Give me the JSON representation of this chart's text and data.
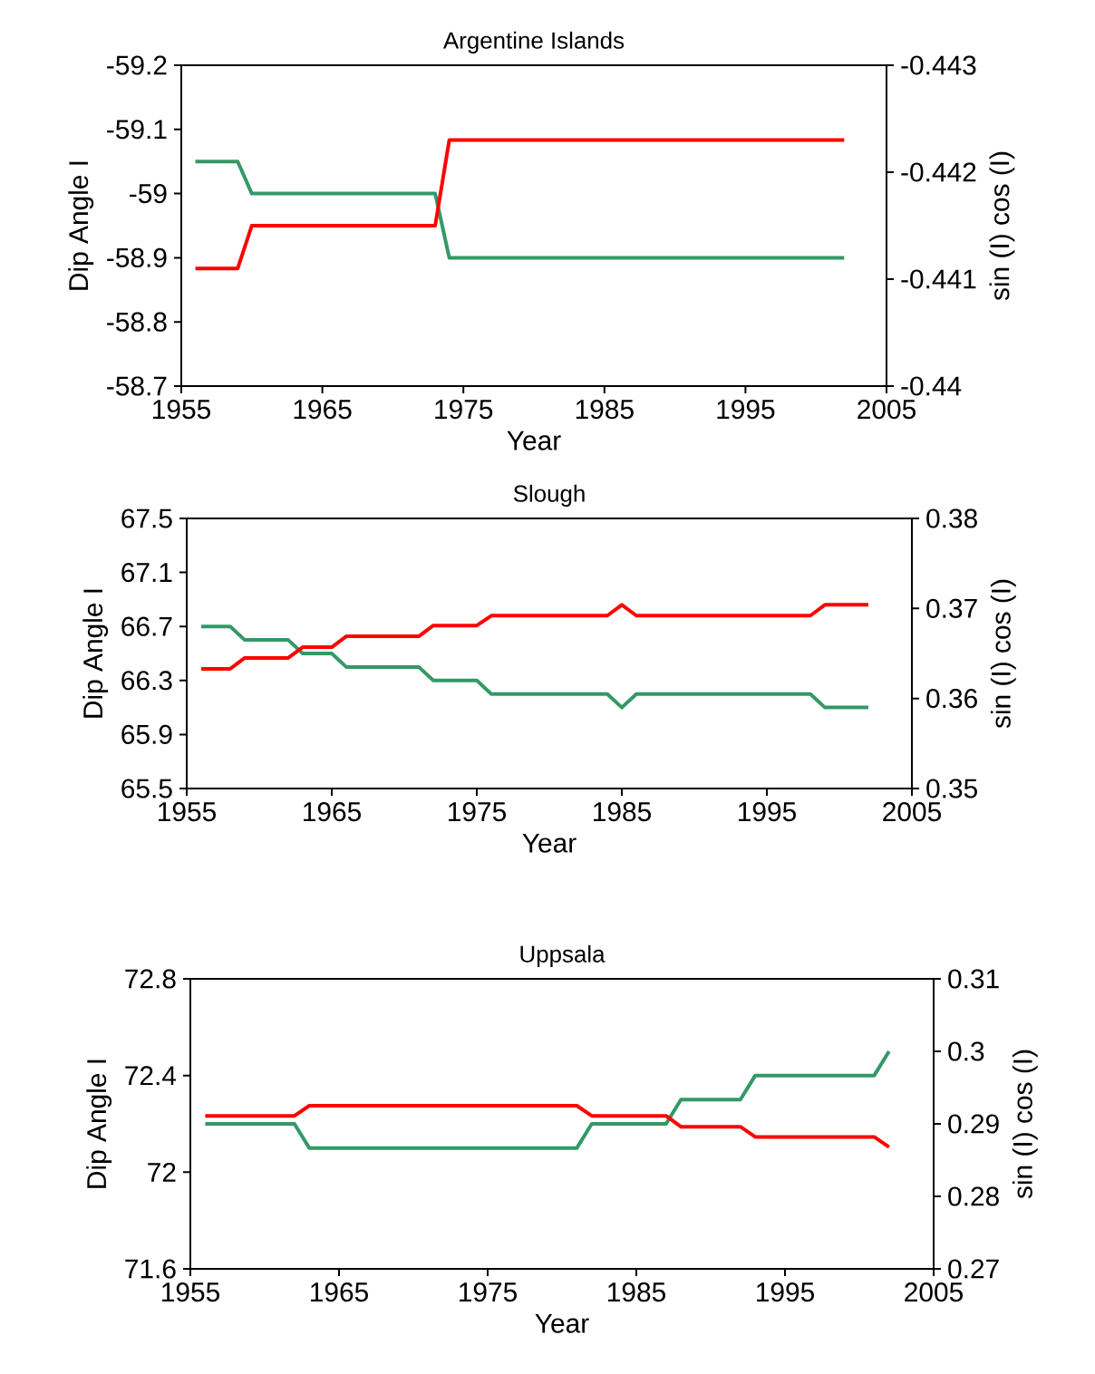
{
  "chart_data": [
    {
      "type": "line",
      "title": "Argentine Islands",
      "xlabel": "Year",
      "ylabel": "Dip Angle I",
      "y2label": "sin (I) cos (I)",
      "xlim": [
        1955,
        2005
      ],
      "xticks": [
        1955,
        1965,
        1975,
        1985,
        1995,
        2005
      ],
      "ylim": [
        -58.7,
        -59.2
      ],
      "yticks": [
        -59.2,
        -59.1,
        -59,
        -58.9,
        -58.8,
        -58.7
      ],
      "y2lim": [
        -0.44,
        -0.443
      ],
      "y2ticks": [
        -0.443,
        -0.442,
        -0.441,
        -0.44
      ],
      "series": [
        {
          "color": "#339966",
          "x": [
            1956,
            1959,
            1960,
            1973,
            1974,
            2002
          ],
          "values": [
            -59.05,
            -59.05,
            -59,
            -59,
            -58.9,
            -58.9
          ]
        },
        {
          "color": "#ff0000",
          "axis": "y2",
          "x": [
            1956,
            1959,
            1960,
            1973,
            1974,
            2002
          ],
          "values": [
            -0.4411,
            -0.4411,
            -0.4415,
            -0.4415,
            -0.4423,
            -0.4423
          ]
        }
      ]
    },
    {
      "type": "line",
      "title": "Slough",
      "xlabel": "Year",
      "ylabel": "Dip Angle I",
      "y2label": "sin (I) cos (I)",
      "xlim": [
        1955,
        2005
      ],
      "xticks": [
        1955,
        1965,
        1975,
        1985,
        1995,
        2005
      ],
      "ylim": [
        65.5,
        67.5
      ],
      "yticks": [
        65.5,
        65.9,
        66.3,
        66.7,
        67.1,
        67.5
      ],
      "y2lim": [
        0.35,
        0.38
      ],
      "y2ticks": [
        0.35,
        0.36,
        0.37,
        0.38
      ],
      "series": [
        {
          "color": "#339966",
          "x": [
            1956,
            1958,
            1959,
            1962,
            1963,
            1965,
            1966,
            1971,
            1972,
            1975,
            1976,
            1984,
            1985,
            1986,
            1998,
            1999,
            2002
          ],
          "values": [
            66.7,
            66.7,
            66.6,
            66.6,
            66.5,
            66.5,
            66.4,
            66.4,
            66.3,
            66.3,
            66.2,
            66.2,
            66.1,
            66.2,
            66.2,
            66.1,
            66.1
          ]
        },
        {
          "color": "#ff0000",
          "axis": "y2",
          "x": [
            1956,
            1958,
            1959,
            1962,
            1963,
            1965,
            1966,
            1971,
            1972,
            1975,
            1976,
            1984,
            1985,
            1986,
            1998,
            1999,
            2002
          ],
          "values": [
            0.3633,
            0.3633,
            0.3645,
            0.3645,
            0.3657,
            0.3657,
            0.3669,
            0.3669,
            0.3681,
            0.3681,
            0.3692,
            0.3692,
            0.3704,
            0.3692,
            0.3692,
            0.3704,
            0.3704
          ]
        }
      ]
    },
    {
      "type": "line",
      "title": "Uppsala",
      "xlabel": "Year",
      "ylabel": "Dip Angle I",
      "y2label": "sin (I) cos (I)",
      "xlim": [
        1955,
        2005
      ],
      "xticks": [
        1955,
        1965,
        1975,
        1985,
        1995,
        2005
      ],
      "ylim": [
        71.6,
        72.8
      ],
      "yticks": [
        71.6,
        72,
        72.4,
        72.8
      ],
      "y2lim": [
        0.27,
        0.31
      ],
      "y2ticks": [
        0.27,
        0.28,
        0.29,
        0.3,
        0.31
      ],
      "series": [
        {
          "color": "#339966",
          "x": [
            1956,
            1962,
            1963,
            1981,
            1982,
            1987,
            1988,
            1992,
            1993,
            2001,
            2002
          ],
          "values": [
            72.2,
            72.2,
            72.1,
            72.1,
            72.2,
            72.2,
            72.3,
            72.3,
            72.4,
            72.4,
            72.5
          ]
        },
        {
          "color": "#ff0000",
          "axis": "y2",
          "x": [
            1956,
            1962,
            1963,
            1981,
            1982,
            1987,
            1988,
            1992,
            1993,
            2001,
            2002
          ],
          "values": [
            0.2911,
            0.2911,
            0.2925,
            0.2925,
            0.2911,
            0.2911,
            0.2896,
            0.2896,
            0.2882,
            0.2882,
            0.2868
          ]
        }
      ]
    }
  ]
}
